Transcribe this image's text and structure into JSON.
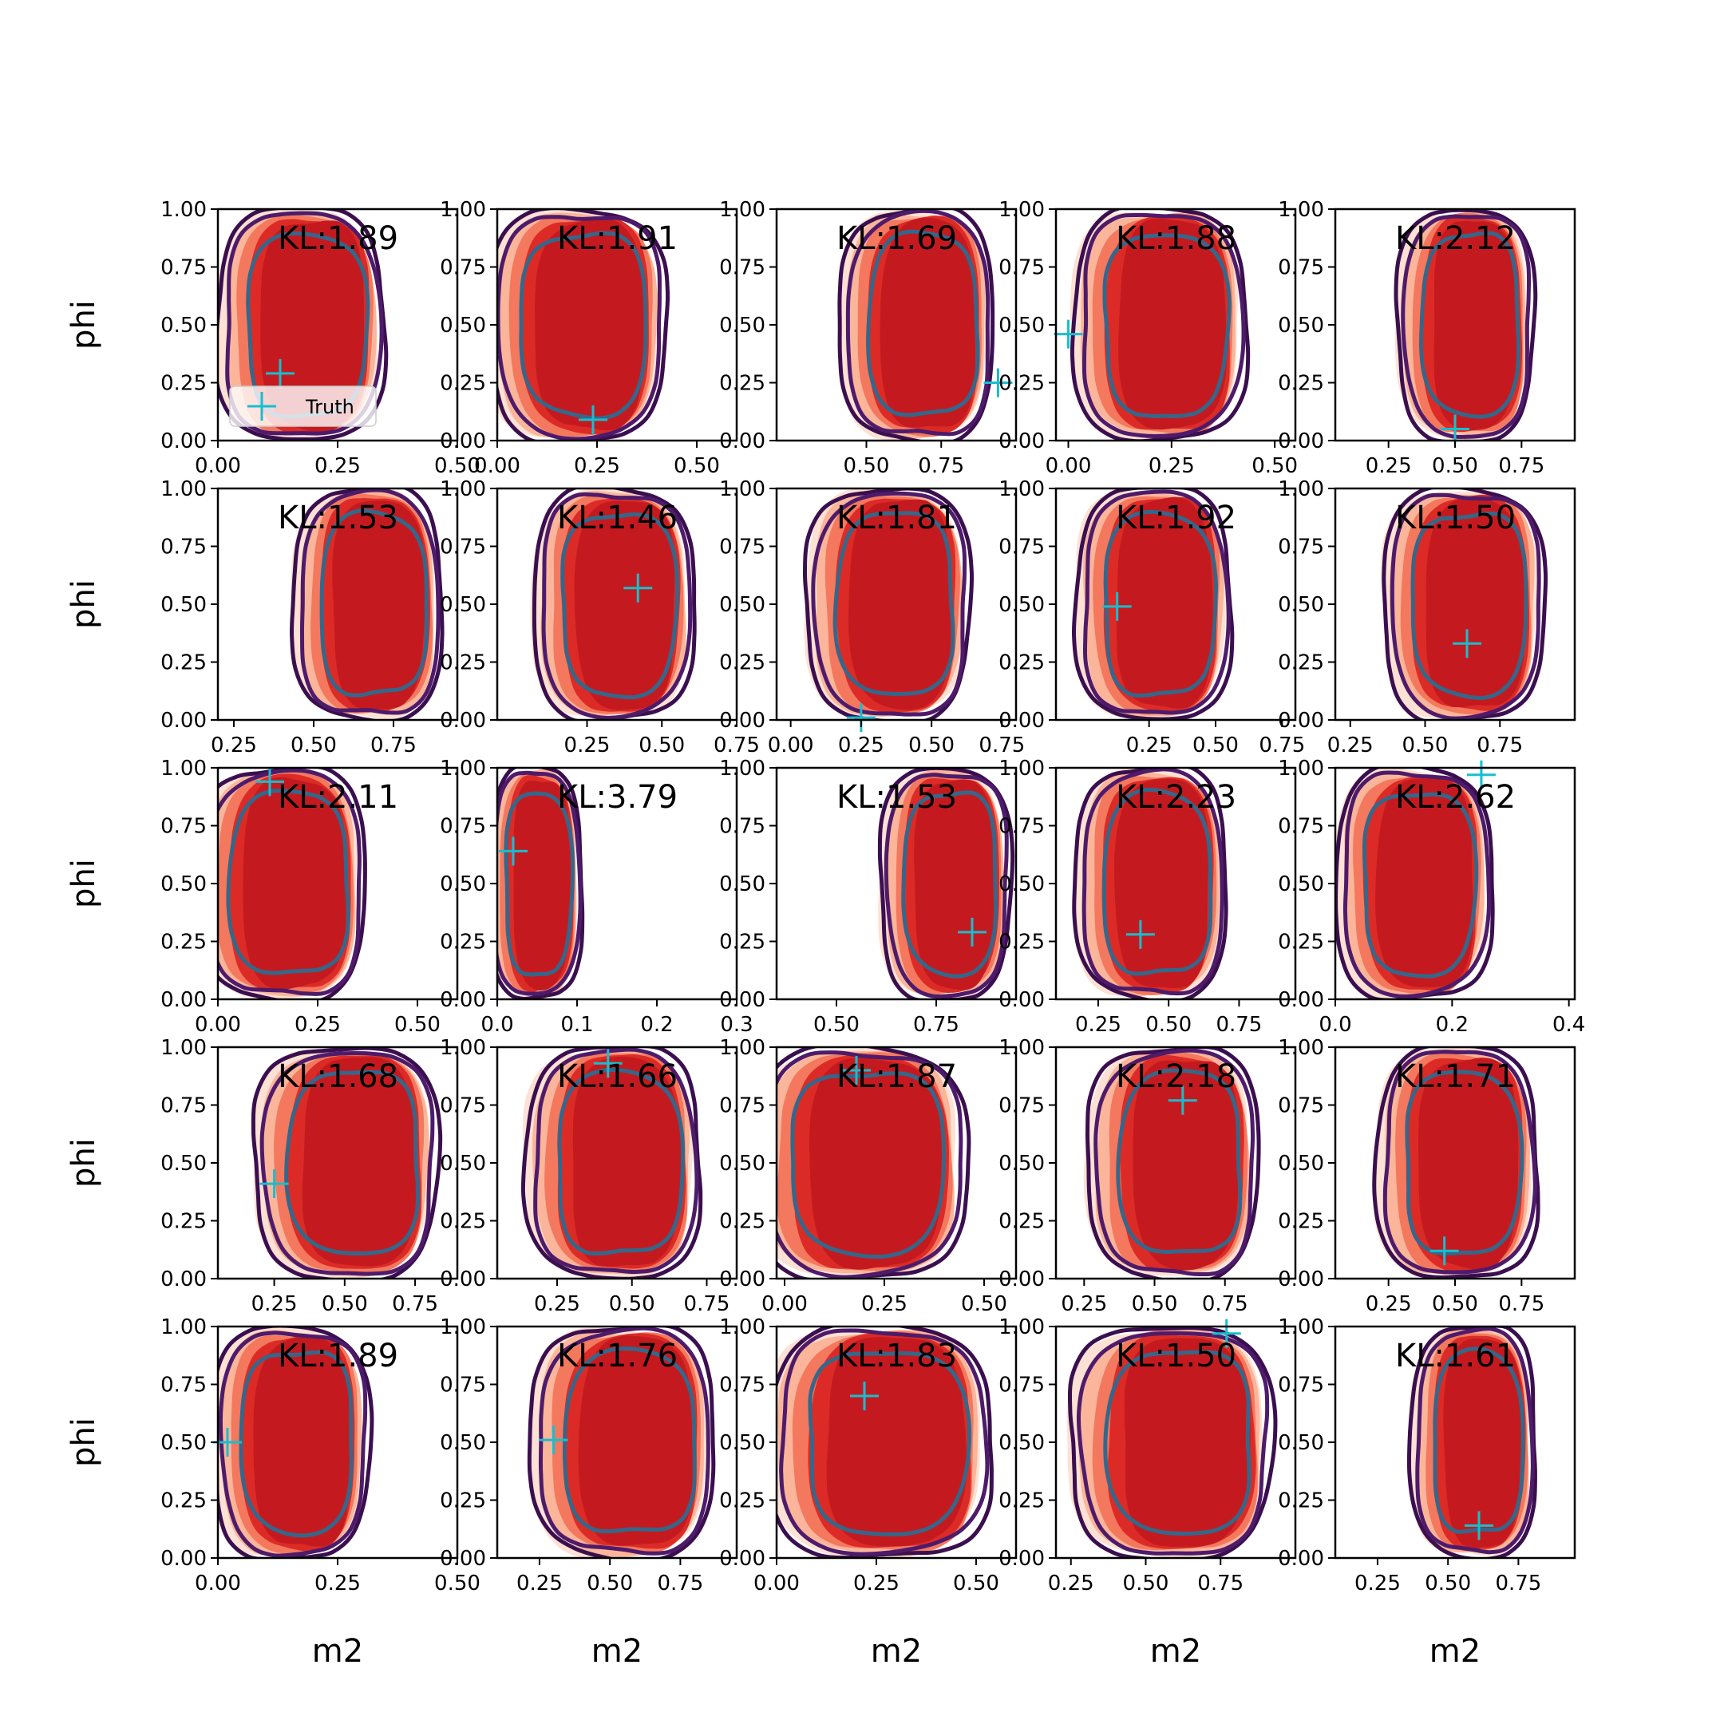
{
  "figure": {
    "background": "#ffffff"
  },
  "colors": {
    "fill_levels": [
      "#fde1d4",
      "#fbb59a",
      "#f4785e",
      "#dc2b26",
      "#c41a1f"
    ],
    "contour_outer": "#3b0f4f",
    "contour_mid": "#4e1b6b",
    "contour_inner": "#35678a",
    "truth": "#17becf"
  },
  "chart_data": {
    "type": "contour",
    "grid": "off",
    "xlabel": "m2",
    "ylabel": "phi",
    "ylim": [
      0,
      1
    ],
    "yticks": [
      "0.00",
      "0.25",
      "0.50",
      "0.75",
      "1.00"
    ],
    "legend": {
      "location": "lower left",
      "entries": [
        "Truth"
      ]
    },
    "panels": [
      {
        "kl": "KL:1.89",
        "xlim": [
          0,
          0.5
        ],
        "xticks": [
          0,
          0.25,
          0.5
        ],
        "xtick_labels": [
          "0.00",
          "0.25",
          "0.50"
        ],
        "truth": [
          0.13,
          0.29
        ],
        "center": 0.18,
        "width": 0.3
      },
      {
        "kl": "KL:1.91",
        "xlim": [
          0,
          0.6
        ],
        "xticks": [
          0,
          0.25,
          0.5
        ],
        "xtick_labels": [
          "0.00",
          "0.25",
          "0.50"
        ],
        "truth": [
          0.24,
          0.09
        ],
        "center": 0.21,
        "width": 0.38
      },
      {
        "kl": "KL:1.69",
        "xlim": [
          0.2,
          1.0
        ],
        "xticks": [
          0.5,
          0.75
        ],
        "xtick_labels": [
          "0.50",
          "0.75"
        ],
        "truth": [
          0.94,
          0.25
        ],
        "center": 0.68,
        "width": 0.44
      },
      {
        "kl": "KL:1.88",
        "xlim": [
          -0.03,
          0.55
        ],
        "xticks": [
          0,
          0.25,
          0.5
        ],
        "xtick_labels": [
          "0.00",
          "0.25",
          "0.50"
        ],
        "truth": [
          0.0,
          0.46
        ],
        "center": 0.23,
        "width": 0.36
      },
      {
        "kl": "KL:2.12",
        "xlim": [
          0.05,
          0.95
        ],
        "xticks": [
          0.25,
          0.5,
          0.75
        ],
        "xtick_labels": [
          "0.25",
          "0.50",
          "0.75"
        ],
        "truth": [
          0.5,
          0.05
        ],
        "center": 0.55,
        "width": 0.44
      },
      {
        "kl": "KL:1.53",
        "xlim": [
          0.2,
          0.95
        ],
        "xticks": [
          0.25,
          0.5,
          0.75
        ],
        "xtick_labels": [
          "0.25",
          "0.50",
          "0.75"
        ],
        "truth": [
          null,
          null
        ],
        "center": 0.68,
        "width": 0.4
      },
      {
        "kl": "KL:1.46",
        "xlim": [
          -0.05,
          0.75
        ],
        "xticks": [
          0.25,
          0.5,
          0.75
        ],
        "xtick_labels": [
          "0.25",
          "0.50",
          "0.75"
        ],
        "truth": [
          0.42,
          0.57
        ],
        "center": 0.35,
        "width": 0.46
      },
      {
        "kl": "KL:1.81",
        "xlim": [
          -0.05,
          0.8
        ],
        "xticks": [
          0,
          0.25,
          0.5,
          0.75
        ],
        "xtick_labels": [
          "0.00",
          "0.25",
          "0.50",
          "0.75"
        ],
        "truth": [
          0.25,
          0.01
        ],
        "center": 0.36,
        "width": 0.5
      },
      {
        "kl": "KL:1.92",
        "xlim": [
          -0.1,
          0.8
        ],
        "xticks": [
          0.25,
          0.5,
          0.75
        ],
        "xtick_labels": [
          "0.25",
          "0.50",
          "0.75"
        ],
        "truth": [
          0.13,
          0.49
        ],
        "center": 0.28,
        "width": 0.5
      },
      {
        "kl": "KL:1.50",
        "xlim": [
          0.2,
          1.0
        ],
        "xticks": [
          0.25,
          0.5,
          0.75
        ],
        "xtick_labels": [
          "0.25",
          "0.50",
          "0.75"
        ],
        "truth": [
          0.64,
          0.33
        ],
        "center": 0.64,
        "width": 0.46
      },
      {
        "kl": "KL:2.11",
        "xlim": [
          0,
          0.6
        ],
        "xticks": [
          0,
          0.25,
          0.5
        ],
        "xtick_labels": [
          "0.00",
          "0.25",
          "0.50"
        ],
        "truth": [
          0.13,
          0.94
        ],
        "center": 0.17,
        "width": 0.36
      },
      {
        "kl": "KL:3.79",
        "xlim": [
          0,
          0.3
        ],
        "xticks": [
          0,
          0.1,
          0.2,
          0.3
        ],
        "xtick_labels": [
          "0.0",
          "0.1",
          "0.2",
          "0.3"
        ],
        "truth": [
          0.02,
          0.64
        ],
        "center": 0.05,
        "width": 0.1
      },
      {
        "kl": "KL:1.53",
        "xlim": [
          0.35,
          0.95
        ],
        "xticks": [
          0.5,
          0.75
        ],
        "xtick_labels": [
          "0.50",
          "0.75"
        ],
        "truth": [
          0.84,
          0.29
        ],
        "center": 0.78,
        "width": 0.28
      },
      {
        "kl": "KL:2.23",
        "xlim": [
          0.1,
          0.95
        ],
        "xticks": [
          0.25,
          0.5,
          0.75
        ],
        "xtick_labels": [
          "0.25",
          "0.50",
          "0.75"
        ],
        "truth": [
          0.4,
          0.28
        ],
        "center": 0.45,
        "width": 0.46
      },
      {
        "kl": "KL:2.62",
        "xlim": [
          0,
          0.41
        ],
        "xticks": [
          0,
          0.2,
          0.4
        ],
        "xtick_labels": [
          "0.0",
          "0.2",
          "0.4"
        ],
        "truth": [
          0.25,
          0.97
        ],
        "center": 0.14,
        "width": 0.23
      },
      {
        "kl": "KL:1.68",
        "xlim": [
          0.05,
          0.9
        ],
        "xticks": [
          0.25,
          0.5,
          0.75
        ],
        "xtick_labels": [
          "0.25",
          "0.50",
          "0.75"
        ],
        "truth": [
          0.25,
          0.41
        ],
        "center": 0.52,
        "width": 0.56
      },
      {
        "kl": "KL:1.66",
        "xlim": [
          0.05,
          0.85
        ],
        "xticks": [
          0.25,
          0.5,
          0.75
        ],
        "xtick_labels": [
          "0.25",
          "0.50",
          "0.75"
        ],
        "truth": [
          0.42,
          0.93
        ],
        "center": 0.45,
        "width": 0.5
      },
      {
        "kl": "KL:1.87",
        "xlim": [
          -0.02,
          0.58
        ],
        "xticks": [
          0,
          0.25,
          0.5
        ],
        "xtick_labels": [
          "0.00",
          "0.25",
          "0.50"
        ],
        "truth": [
          0.18,
          0.9
        ],
        "center": 0.2,
        "width": 0.46
      },
      {
        "kl": "KL:2.18",
        "xlim": [
          0.15,
          1.0
        ],
        "xticks": [
          0.25,
          0.5,
          0.75
        ],
        "xtick_labels": [
          "0.25",
          "0.50",
          "0.75"
        ],
        "truth": [
          0.6,
          0.77
        ],
        "center": 0.58,
        "width": 0.52
      },
      {
        "kl": "KL:1.71",
        "xlim": [
          0.05,
          0.95
        ],
        "xticks": [
          0.25,
          0.5,
          0.75
        ],
        "xtick_labels": [
          "0.25",
          "0.50",
          "0.75"
        ],
        "truth": [
          0.46,
          0.12
        ],
        "center": 0.52,
        "width": 0.52
      },
      {
        "kl": "KL:1.89",
        "xlim": [
          0,
          0.5
        ],
        "xticks": [
          0,
          0.25,
          0.5
        ],
        "xtick_labels": [
          "0.00",
          "0.25",
          "0.50"
        ],
        "truth": [
          0.02,
          0.5
        ],
        "center": 0.16,
        "width": 0.28
      },
      {
        "kl": "KL:1.76",
        "xlim": [
          0.1,
          0.95
        ],
        "xticks": [
          0.25,
          0.5,
          0.75
        ],
        "xtick_labels": [
          "0.25",
          "0.50",
          "0.75"
        ],
        "truth": [
          0.3,
          0.51
        ],
        "center": 0.56,
        "width": 0.56
      },
      {
        "kl": "KL:1.83",
        "xlim": [
          0,
          0.6
        ],
        "xticks": [
          0,
          0.25,
          0.5
        ],
        "xtick_labels": [
          "0.00",
          "0.25",
          "0.50"
        ],
        "truth": [
          0.22,
          0.7
        ],
        "center": 0.27,
        "width": 0.48
      },
      {
        "kl": "KL:1.50",
        "xlim": [
          0.2,
          1.0
        ],
        "xticks": [
          0.25,
          0.5,
          0.75
        ],
        "xtick_labels": [
          "0.25",
          "0.50",
          "0.75"
        ],
        "truth": [
          0.77,
          0.97
        ],
        "center": 0.6,
        "width": 0.58
      },
      {
        "kl": "KL:1.61",
        "xlim": [
          0.1,
          0.95
        ],
        "xticks": [
          0.25,
          0.5,
          0.75
        ],
        "xtick_labels": [
          "0.25",
          "0.50",
          "0.75"
        ],
        "truth": [
          0.61,
          0.14
        ],
        "center": 0.6,
        "width": 0.38
      }
    ]
  }
}
